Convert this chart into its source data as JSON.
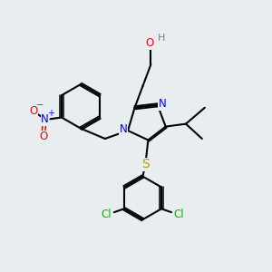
{
  "background_color": "#e8eef0",
  "atom_colors": {
    "C": "#000000",
    "N": "#0000ff",
    "O": "#ff0000",
    "S": "#b8960a",
    "Cl": "#00bb00",
    "H": "#708090"
  },
  "figsize": [
    3.0,
    3.0
  ],
  "dpi": 100
}
